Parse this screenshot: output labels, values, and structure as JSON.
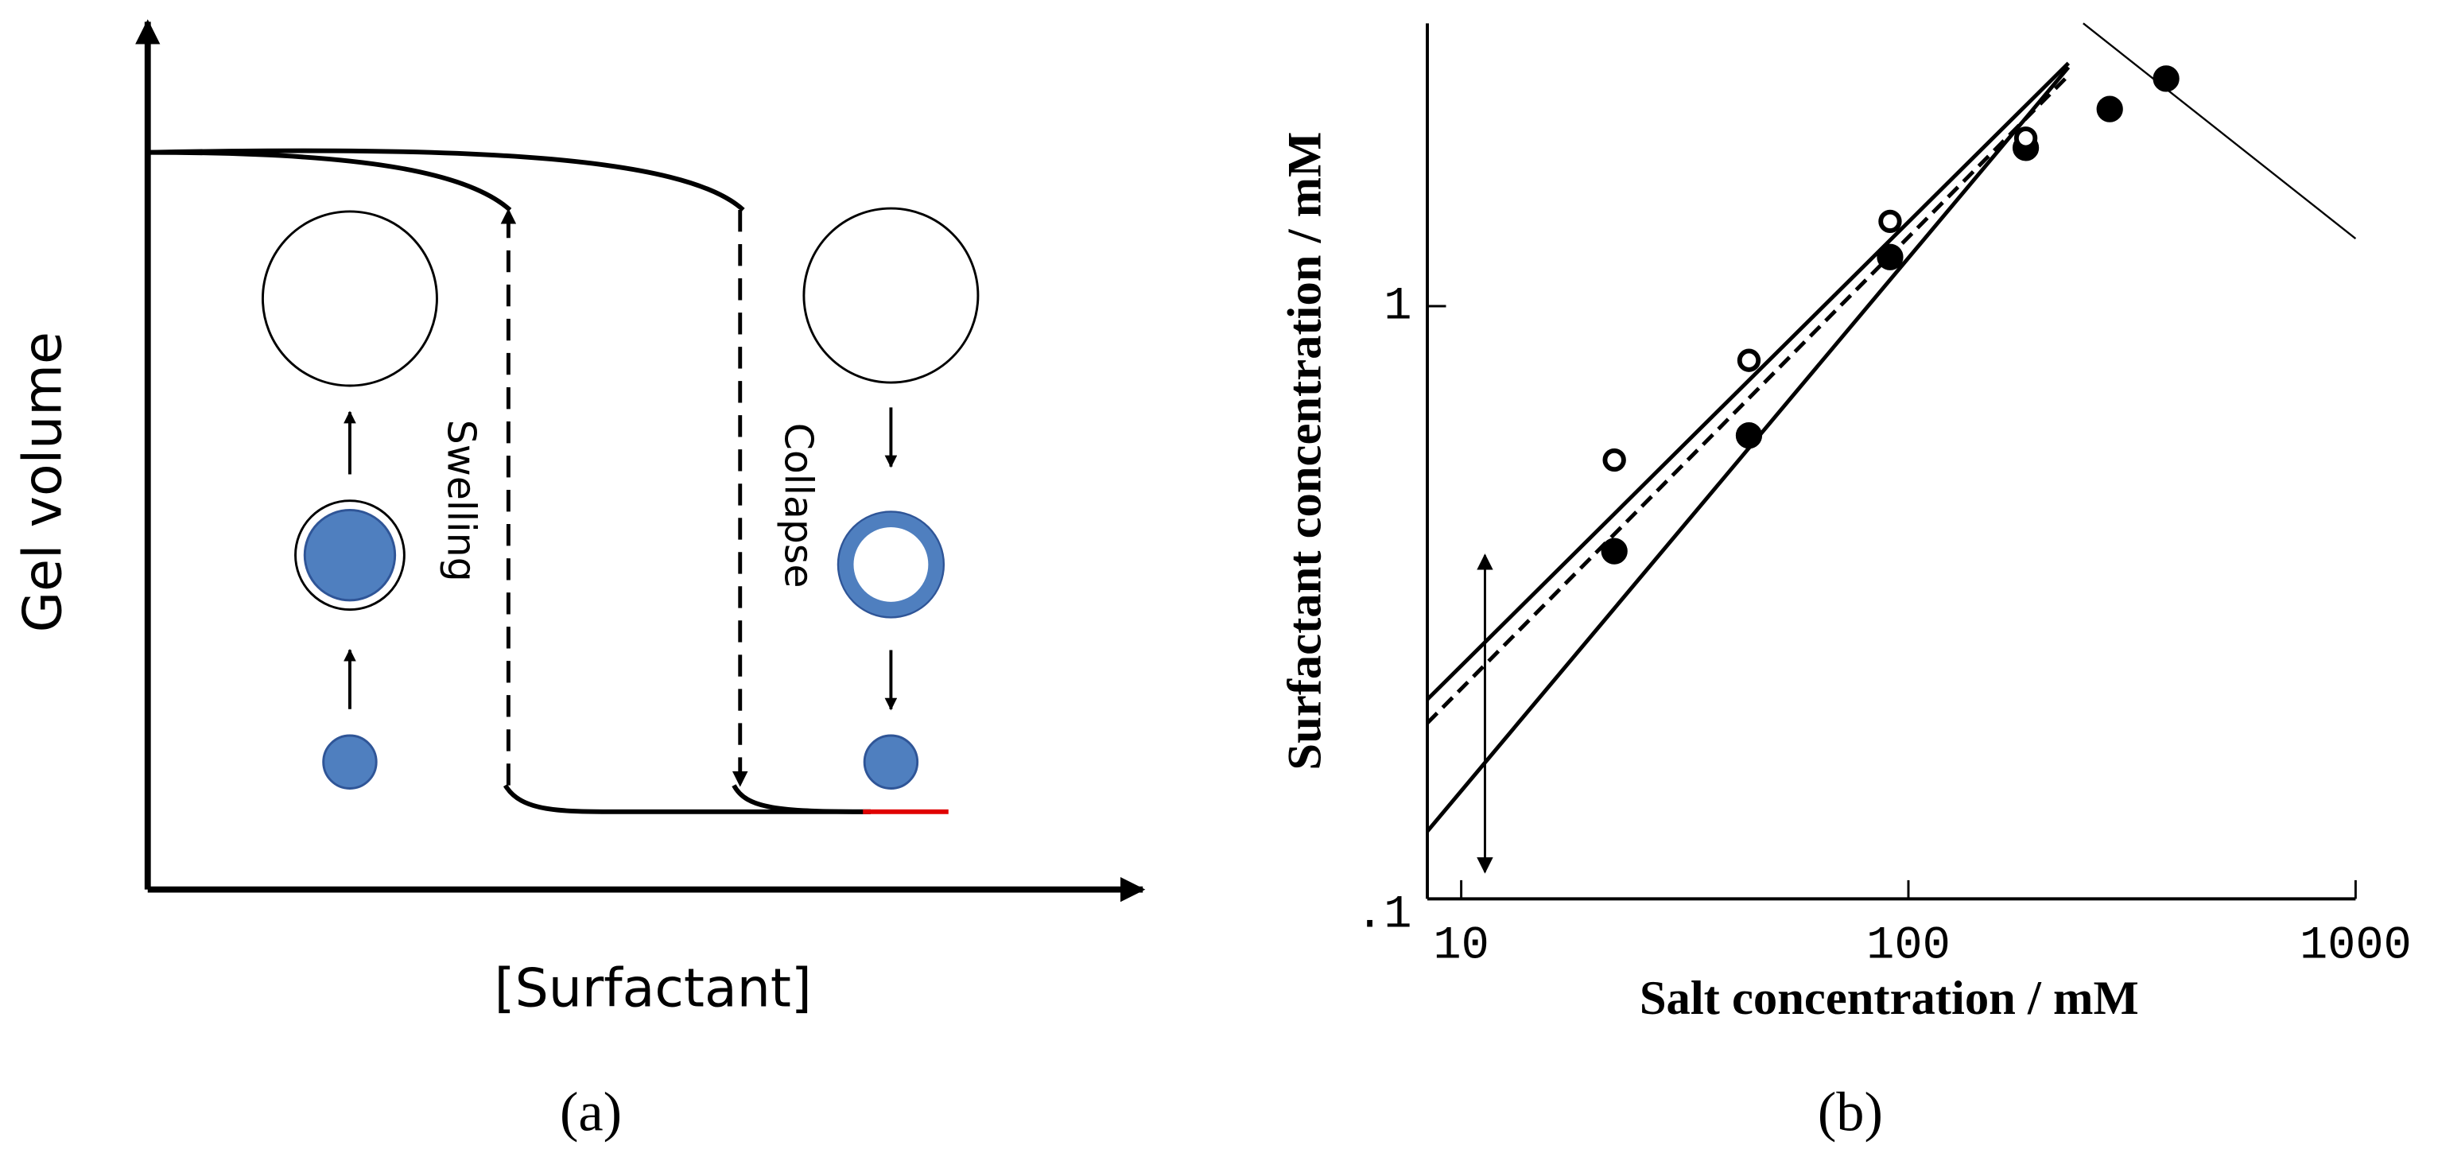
{
  "panel_a": {
    "label": "(a)",
    "xlabel": "[Surfactant]",
    "ylabel": "Gel volume",
    "annotations": [
      "Swelling",
      "Collapse"
    ]
  },
  "chart_data": {
    "type": "scatter",
    "panel_label": "(b)",
    "xlabel": "Salt concentration / mM",
    "ylabel": "Surfactant concentration / mM",
    "xscale": "log",
    "yscale": "log",
    "xlim": [
      8.4,
      1000
    ],
    "ylim": [
      0.1,
      3.0
    ],
    "xticks": [
      10,
      100,
      1000
    ],
    "yticks": [
      {
        "value": 0.1,
        "label": ".1"
      },
      1
    ],
    "series": [
      {
        "marker": "filled",
        "color": "#000000",
        "x": [
          22,
          44,
          91,
          183,
          282,
          377
        ],
        "values": [
          0.386,
          0.605,
          1.21,
          1.85,
          2.15,
          2.42
        ]
      },
      {
        "marker": "open",
        "color": "#000000",
        "x": [
          22,
          44,
          91,
          183
        ],
        "values": [
          0.55,
          0.81,
          1.39,
          1.92
        ]
      }
    ],
    "lines": [
      {
        "style": "solid",
        "width": 2.5,
        "x": [
          8.4,
          228
        ],
        "values": [
          0.217,
          2.57
        ]
      },
      {
        "style": "dashed",
        "width": 2.5,
        "x": [
          8.4,
          228
        ],
        "values": [
          0.198,
          2.45
        ]
      },
      {
        "style": "solid",
        "width": 2.5,
        "x": [
          8.4,
          228
        ],
        "values": [
          0.13,
          2.53
        ]
      },
      {
        "style": "solid",
        "width": 1.2,
        "x": [
          246,
          1000
        ],
        "values": [
          3.0,
          1.3
        ]
      }
    ],
    "arrow": {
      "x": [
        11.3,
        11.3
      ],
      "values": [
        0.38,
        0.111
      ]
    }
  }
}
